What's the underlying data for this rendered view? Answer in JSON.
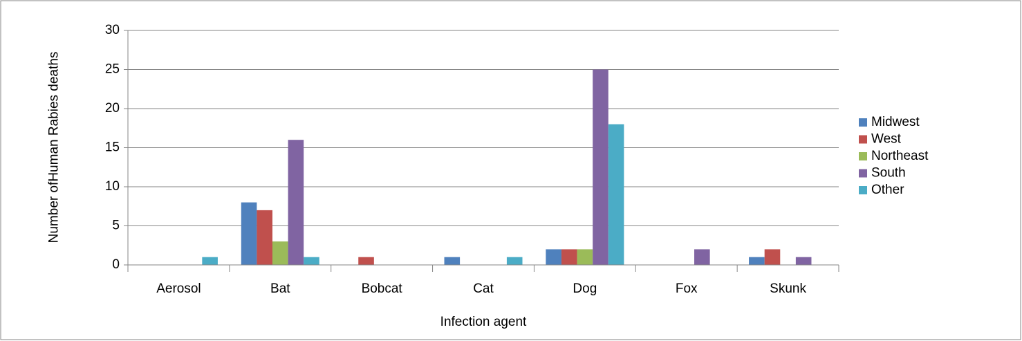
{
  "chart_data": {
    "type": "bar",
    "categories": [
      "Aerosol",
      "Bat",
      "Bobcat",
      "Cat",
      "Dog",
      "Fox",
      "Skunk"
    ],
    "series": [
      {
        "name": "Midwest",
        "color": "#4f81bd",
        "values": [
          0,
          8,
          0,
          1,
          2,
          0,
          1
        ]
      },
      {
        "name": "West",
        "color": "#c0504d",
        "values": [
          0,
          7,
          1,
          0,
          2,
          0,
          2
        ]
      },
      {
        "name": "Northeast",
        "color": "#9bbb59",
        "values": [
          0,
          3,
          0,
          0,
          2,
          0,
          0
        ]
      },
      {
        "name": "South",
        "color": "#8064a2",
        "values": [
          0,
          16,
          0,
          0,
          25,
          2,
          1
        ]
      },
      {
        "name": "Other",
        "color": "#4bacc6",
        "values": [
          1,
          1,
          0,
          1,
          18,
          0,
          0
        ]
      }
    ],
    "x_label": "Infection agent",
    "y_label": "Number ofHuman Rabies deaths",
    "ylim": [
      0,
      30
    ],
    "yticks": [
      0,
      5,
      10,
      15,
      20,
      25,
      30
    ],
    "grid": true,
    "legend": "right"
  }
}
